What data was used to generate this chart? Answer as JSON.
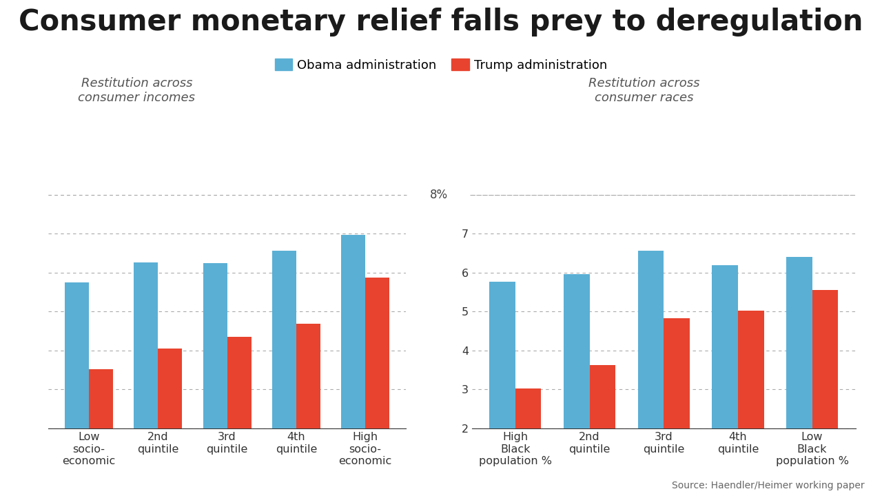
{
  "title": "Consumer monetary relief falls prey to deregulation",
  "subtitle_left": "Restitution across\nconsumer incomes",
  "subtitle_right": "Restitution across\nconsumer races",
  "legend_obama": "Obama administration",
  "legend_trump": "Trump administration",
  "source": "Source: Haendler/Heimer working paper",
  "color_obama": "#5aafd4",
  "color_trump": "#e8432e",
  "background_color": "#ffffff",
  "ylim": [
    2,
    8.4
  ],
  "yticks": [
    2,
    3,
    4,
    5,
    6,
    7
  ],
  "ytick_labels": [
    "2",
    "3",
    "4",
    "5",
    "6",
    "7"
  ],
  "left_categories": [
    "Low\nsocio-\neconomic",
    "2nd\nquintile",
    "3rd\nquintile",
    "4th\nquintile",
    "High\nsocio-\neconomic"
  ],
  "right_categories": [
    "High\nBlack\npopulation %",
    "2nd\nquintile",
    "3rd\nquintile",
    "4th\nquintile",
    "Low\nBlack\npopulation %"
  ],
  "left_obama": [
    5.75,
    6.27,
    6.24,
    6.56,
    6.97
  ],
  "left_trump": [
    3.52,
    4.05,
    4.35,
    4.68,
    5.88
  ],
  "right_obama": [
    5.77,
    5.96,
    6.56,
    6.2,
    6.4
  ],
  "right_trump": [
    3.02,
    3.62,
    4.82,
    5.02,
    5.56
  ],
  "bar_width": 0.35,
  "title_fontsize": 30,
  "subtitle_fontsize": 13,
  "tick_fontsize": 11.5,
  "legend_fontsize": 13,
  "source_fontsize": 10,
  "label_8pct": "8%",
  "label_8pct_fontsize": 12
}
